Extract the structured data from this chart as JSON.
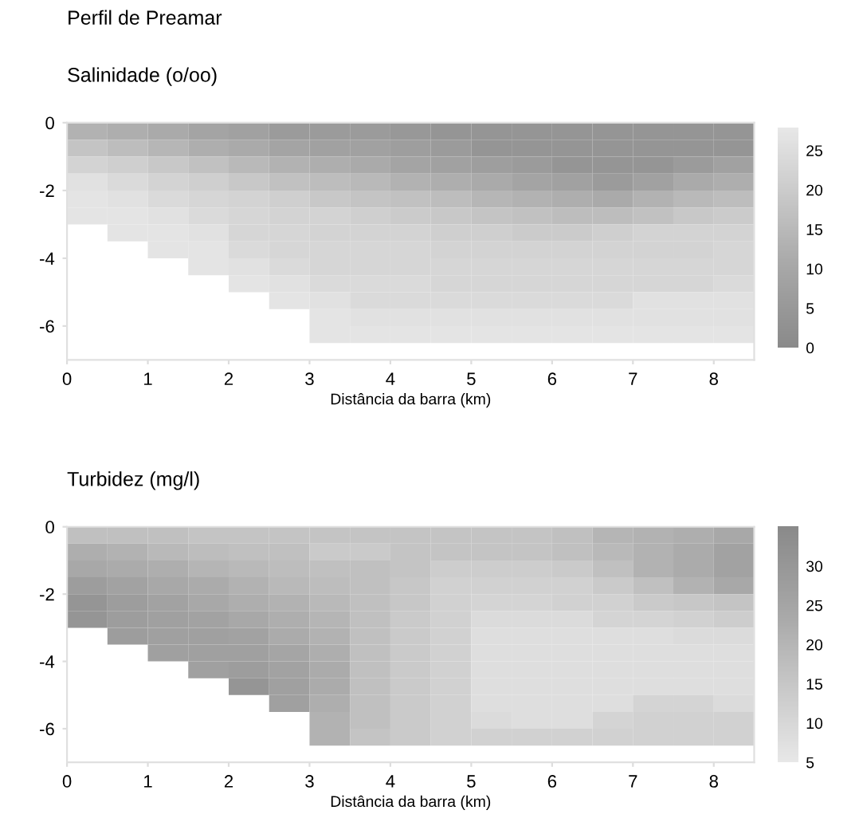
{
  "chart_data": [
    {
      "type": "heatmap",
      "title": "Perfil de Preamar",
      "subtitle": "Salinidade (o/oo)",
      "xlabel": "Distância da barra (km)",
      "x": [
        0.25,
        0.75,
        1.25,
        1.75,
        2.25,
        2.75,
        3.25,
        3.75,
        4.25,
        4.75,
        5.25,
        5.75,
        6.25,
        6.75,
        7.25,
        7.75,
        8.25
      ],
      "y": [
        -0.25,
        -0.75,
        -1.25,
        -1.75,
        -2.25,
        -2.75,
        -3.25,
        -3.75,
        -4.25,
        -4.75,
        -5.25,
        -5.75,
        -6.25
      ],
      "cells": [
        [
          13,
          12,
          11,
          9,
          8,
          6,
          6,
          6,
          5,
          4,
          4,
          4,
          4,
          4,
          4,
          4,
          4
        ],
        [
          18,
          16,
          14,
          12,
          11,
          9,
          8,
          8,
          7,
          6,
          4,
          4,
          4,
          4,
          4,
          4,
          4
        ],
        [
          22,
          21,
          19,
          17,
          15,
          13,
          12,
          11,
          9,
          8,
          7,
          6,
          4,
          4,
          4,
          6,
          8
        ],
        [
          26,
          24,
          22,
          21,
          19,
          17,
          16,
          15,
          13,
          12,
          11,
          9,
          8,
          6,
          8,
          11,
          12
        ],
        [
          27,
          26,
          24,
          23,
          22,
          21,
          19,
          18,
          17,
          16,
          14,
          13,
          12,
          11,
          13,
          15,
          16
        ],
        [
          27,
          27,
          26,
          24,
          23,
          22,
          22,
          21,
          20,
          19,
          18,
          17,
          16,
          16,
          17,
          19,
          20
        ],
        [
          null,
          27,
          27,
          26,
          23,
          23,
          22,
          22,
          22,
          21,
          21,
          20,
          20,
          21,
          22,
          22,
          22
        ],
        [
          null,
          null,
          27,
          27,
          24,
          23,
          23,
          23,
          23,
          22,
          22,
          22,
          22,
          22,
          22,
          22,
          23
        ],
        [
          null,
          null,
          null,
          27,
          26,
          24,
          23,
          23,
          23,
          23,
          23,
          23,
          23,
          23,
          23,
          23,
          23
        ],
        [
          null,
          null,
          null,
          null,
          27,
          26,
          24,
          24,
          24,
          23,
          23,
          23,
          23,
          23,
          23,
          23,
          24
        ],
        [
          null,
          null,
          null,
          null,
          null,
          27,
          26,
          24,
          24,
          24,
          24,
          24,
          24,
          24,
          26,
          26,
          26
        ],
        [
          null,
          null,
          null,
          null,
          null,
          null,
          27,
          26,
          26,
          26,
          26,
          26,
          26,
          26,
          26,
          26,
          26
        ],
        [
          null,
          null,
          null,
          null,
          null,
          null,
          27,
          27,
          27,
          27,
          27,
          27,
          27,
          27,
          27,
          27,
          27
        ]
      ],
      "colors": [
        "#8a8a8a",
        "#9a9a9a",
        "#ababab",
        "#c0c0c0",
        "#d4d4d4",
        "#e8e8e8"
      ],
      "clim": [
        0,
        28
      ],
      "cticks": [
        0,
        5,
        10,
        15,
        20,
        25
      ],
      "xlim": [
        0,
        8.5
      ],
      "ylim": [
        -7,
        0
      ],
      "xticks": [
        0,
        1,
        2,
        3,
        4,
        5,
        6,
        7,
        8
      ],
      "yticks": [
        {
          "value": -6,
          "label": "-6"
        },
        {
          "value": -4,
          "label": "-4"
        },
        {
          "value": -2,
          "label": "-2"
        },
        0
      ]
    },
    {
      "type": "heatmap",
      "title": "Turbidez (mg/l)",
      "xlabel": "Distância da barra (km)",
      "x": [
        0.25,
        0.75,
        1.25,
        1.75,
        2.25,
        2.75,
        3.25,
        3.75,
        4.25,
        4.75,
        5.25,
        5.75,
        6.25,
        6.75,
        7.25,
        7.75,
        8.25
      ],
      "y": [
        -0.25,
        -0.75,
        -1.25,
        -1.75,
        -2.25,
        -2.75,
        -3.25,
        -3.75,
        -4.25,
        -4.75,
        -5.25,
        -5.75,
        -6.25
      ],
      "cells": [
        [
          17,
          17,
          17,
          16,
          16,
          16,
          16,
          16,
          16,
          16,
          16,
          16,
          17,
          20,
          21,
          22,
          24
        ],
        [
          22,
          21,
          19,
          18,
          17,
          17,
          14,
          14,
          16,
          16,
          16,
          16,
          17,
          19,
          21,
          23,
          26
        ],
        [
          24,
          23,
          22,
          20,
          19,
          18,
          17,
          17,
          16,
          13,
          13,
          13,
          14,
          17,
          21,
          23,
          26
        ],
        [
          28,
          26,
          24,
          23,
          21,
          19,
          18,
          17,
          15,
          12,
          12,
          12,
          12,
          14,
          17,
          21,
          24
        ],
        [
          31,
          28,
          26,
          24,
          22,
          21,
          19,
          17,
          15,
          12,
          11,
          11,
          12,
          12,
          14,
          15,
          16
        ],
        [
          31,
          28,
          27,
          26,
          24,
          22,
          20,
          17,
          14,
          12,
          9,
          9,
          9,
          11,
          11,
          12,
          13
        ],
        [
          null,
          28,
          27,
          27,
          26,
          23,
          21,
          17,
          14,
          12,
          8,
          8,
          8,
          8,
          8,
          9,
          9
        ],
        [
          null,
          null,
          27,
          27,
          27,
          25,
          22,
          17,
          14,
          12,
          8,
          8,
          8,
          8,
          8,
          8,
          8
        ],
        [
          null,
          null,
          null,
          27,
          28,
          26,
          23,
          17,
          14,
          12,
          8,
          8,
          8,
          8,
          8,
          8,
          8
        ],
        [
          null,
          null,
          null,
          null,
          31,
          27,
          23,
          17,
          14,
          12,
          8,
          8,
          8,
          8,
          8,
          8,
          8
        ],
        [
          null,
          null,
          null,
          null,
          null,
          27,
          22,
          17,
          14,
          12,
          8,
          8,
          8,
          8,
          11,
          11,
          9
        ],
        [
          null,
          null,
          null,
          null,
          null,
          null,
          21,
          17,
          14,
          12,
          9,
          8,
          8,
          11,
          12,
          12,
          12
        ],
        [
          null,
          null,
          null,
          null,
          null,
          null,
          21,
          16,
          14,
          12,
          12,
          12,
          12,
          12,
          12,
          12,
          12
        ]
      ],
      "colors": [
        "#e8e8e8",
        "#d4d4d4",
        "#c0c0c0",
        "#ababab",
        "#9a9a9a",
        "#8a8a8a"
      ],
      "clim": [
        5,
        35
      ],
      "cticks": [
        5,
        10,
        15,
        20,
        25,
        30
      ],
      "xlim": [
        0,
        8.5
      ],
      "ylim": [
        -7,
        0
      ],
      "xticks": [
        0,
        1,
        2,
        3,
        4,
        5,
        6,
        7,
        8
      ],
      "yticks": [
        {
          "value": -6,
          "label": "-6"
        },
        {
          "value": -4,
          "label": "-4"
        },
        {
          "value": -2,
          "label": "-2"
        },
        0
      ]
    }
  ]
}
